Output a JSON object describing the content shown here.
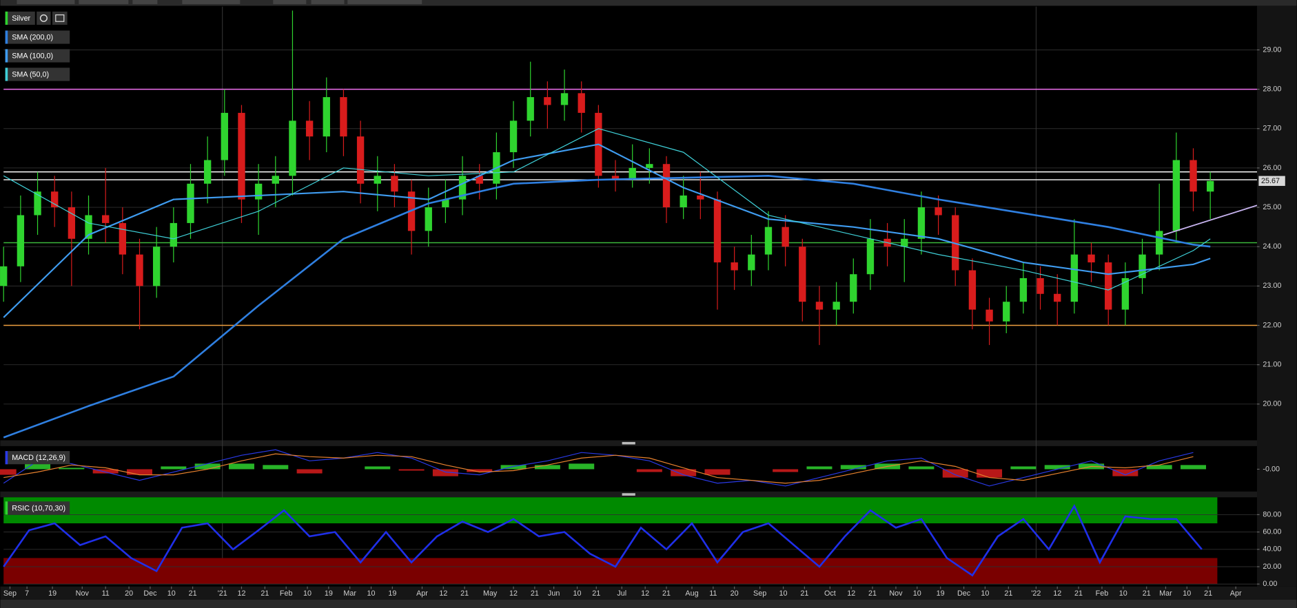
{
  "chart_data": [
    {
      "type": "candlestick",
      "title": "Silver",
      "x": [
        0,
        8,
        16,
        24,
        32,
        40,
        48,
        56,
        64,
        72,
        80,
        88,
        96,
        104,
        112,
        120,
        128,
        136,
        144,
        152,
        160,
        168,
        176,
        184,
        192,
        200,
        208,
        216,
        224,
        232,
        240,
        248,
        256,
        264,
        272,
        280,
        288,
        296,
        304,
        312,
        320,
        328,
        336,
        344,
        352,
        360,
        368,
        376,
        384,
        392,
        400,
        408,
        416,
        424,
        432,
        440,
        448,
        456,
        464,
        472,
        480,
        488,
        496,
        504,
        512,
        520,
        528,
        536,
        544,
        552,
        560,
        568
      ],
      "open": [
        23.0,
        23.5,
        24.8,
        25.4,
        25.0,
        24.2,
        24.8,
        24.6,
        23.8,
        23.0,
        24.0,
        24.6,
        25.6,
        26.2,
        27.4,
        25.2,
        25.6,
        25.8,
        27.2,
        26.8,
        27.8,
        26.8,
        25.6,
        25.8,
        25.4,
        24.4,
        25.0,
        25.2,
        25.8,
        25.6,
        26.4,
        27.2,
        27.8,
        27.6,
        27.9,
        27.4,
        25.8,
        25.7,
        26.0,
        26.1,
        25.0,
        25.3,
        25.2,
        23.6,
        23.4,
        23.8,
        24.5,
        24.0,
        22.6,
        22.4,
        22.6,
        23.3,
        24.2,
        24.0,
        24.2,
        25.0,
        24.8,
        23.4,
        22.4,
        22.1,
        22.6,
        23.2,
        22.8,
        22.6,
        23.8,
        23.6,
        22.4,
        23.2,
        23.8,
        24.4,
        26.2,
        25.4
      ],
      "high": [
        24.0,
        25.3,
        25.9,
        25.8,
        25.4,
        25.3,
        26.0,
        25.0,
        24.2,
        24.5,
        25.0,
        26.1,
        26.8,
        28.0,
        27.6,
        26.1,
        26.3,
        30.0,
        27.7,
        28.3,
        28.0,
        27.2,
        26.3,
        26.1,
        25.7,
        25.5,
        25.7,
        26.3,
        26.1,
        26.9,
        27.7,
        28.7,
        28.2,
        28.5,
        28.2,
        27.6,
        26.2,
        26.6,
        26.5,
        26.3,
        25.8,
        25.9,
        25.4,
        24.0,
        24.3,
        24.9,
        24.8,
        24.2,
        23.0,
        23.1,
        23.7,
        24.7,
        24.6,
        24.7,
        25.4,
        25.3,
        25.0,
        23.7,
        22.7,
        23.0,
        23.6,
        23.5,
        23.3,
        24.7,
        24.1,
        23.8,
        23.6,
        24.2,
        25.6,
        26.9,
        26.5,
        25.9
      ],
      "low": [
        22.6,
        23.1,
        24.3,
        24.5,
        23.0,
        23.8,
        24.1,
        23.3,
        21.9,
        22.7,
        23.6,
        24.2,
        25.1,
        25.8,
        24.6,
        24.3,
        25.0,
        25.3,
        26.2,
        26.4,
        26.3,
        25.1,
        24.9,
        25.0,
        23.8,
        24.0,
        24.6,
        24.8,
        25.2,
        25.2,
        26.0,
        26.8,
        27.0,
        27.2,
        26.9,
        25.5,
        25.4,
        25.5,
        25.6,
        24.6,
        24.7,
        24.7,
        22.4,
        22.9,
        23.0,
        23.4,
        23.5,
        22.1,
        21.5,
        22.0,
        22.3,
        22.9,
        23.5,
        23.1,
        23.8,
        24.3,
        23.0,
        21.9,
        21.5,
        21.8,
        22.3,
        22.4,
        22.0,
        22.3,
        23.1,
        22.0,
        22.0,
        22.8,
        23.4,
        24.1,
        24.9,
        24.7
      ],
      "close": [
        23.5,
        24.8,
        25.4,
        25.0,
        24.2,
        24.8,
        24.6,
        23.8,
        23.0,
        24.0,
        24.6,
        25.6,
        26.2,
        27.4,
        25.2,
        25.6,
        25.8,
        27.2,
        26.8,
        27.8,
        26.8,
        25.6,
        25.8,
        25.4,
        24.4,
        25.0,
        25.2,
        25.8,
        25.6,
        26.4,
        27.2,
        27.8,
        27.6,
        27.9,
        27.4,
        25.8,
        25.7,
        26.0,
        26.1,
        25.0,
        25.3,
        25.2,
        23.6,
        23.4,
        23.8,
        24.5,
        24.0,
        22.6,
        22.4,
        22.6,
        23.3,
        24.2,
        24.0,
        24.2,
        25.0,
        24.8,
        23.4,
        22.4,
        22.1,
        22.6,
        23.2,
        22.8,
        22.6,
        23.8,
        23.6,
        22.4,
        23.2,
        23.8,
        24.4,
        26.2,
        25.4,
        25.67
      ],
      "up_color": "#2fd42f",
      "down_color": "#d81c1c",
      "series": [
        {
          "name": "SMA (200,0)",
          "color": "#2f7fe0",
          "x": [
            0,
            40,
            80,
            120,
            160,
            200,
            240,
            280,
            320,
            360,
            400,
            440,
            480,
            520,
            560,
            568
          ],
          "values": [
            19.15,
            19.95,
            20.7,
            22.5,
            24.2,
            25.1,
            25.6,
            25.7,
            25.75,
            25.8,
            25.6,
            25.2,
            24.85,
            24.5,
            24.05,
            24.0
          ]
        },
        {
          "name": "SMA (100,0)",
          "color": "#3f9cf0",
          "x": [
            0,
            40,
            80,
            120,
            160,
            200,
            240,
            280,
            320,
            360,
            400,
            440,
            480,
            520,
            560,
            568
          ],
          "values": [
            22.2,
            24.3,
            25.2,
            25.3,
            25.4,
            25.2,
            26.2,
            26.6,
            25.5,
            24.7,
            24.5,
            24.2,
            23.6,
            23.3,
            23.55,
            23.7
          ]
        },
        {
          "name": "SMA (50,0)",
          "color": "#3fd0d8",
          "x": [
            0,
            40,
            80,
            120,
            160,
            200,
            240,
            280,
            320,
            360,
            400,
            440,
            480,
            520,
            560,
            568
          ],
          "values": [
            25.8,
            24.6,
            24.2,
            24.9,
            26.0,
            25.8,
            25.9,
            27.0,
            26.4,
            24.8,
            24.3,
            23.8,
            23.4,
            22.9,
            23.9,
            24.2
          ]
        }
      ],
      "levels": [
        {
          "value": 28.0,
          "color": "#f070f0"
        },
        {
          "value": 25.9,
          "color": "#ffffff"
        },
        {
          "value": 25.7,
          "color": "#ffffff"
        },
        {
          "value": 24.1,
          "color": "#3cb83c"
        },
        {
          "value": 22.0,
          "color": "#f0a040"
        }
      ],
      "trendline": {
        "color": "#c8b4f0",
        "x": [
          546,
          590
        ],
        "values": [
          24.3,
          25.05
        ]
      },
      "xlim": [
        0,
        590
      ],
      "ylim": [
        19.1,
        30.1
      ],
      "yticks": [
        {
          "value": 20,
          "label": "20.00"
        },
        {
          "value": 21,
          "label": "21.00"
        },
        {
          "value": 22,
          "label": "22.00"
        },
        {
          "value": 23,
          "label": "23.00"
        },
        {
          "value": 24,
          "label": "24.00"
        },
        {
          "value": 25,
          "label": "25.00"
        },
        {
          "value": 26,
          "label": "26.00"
        },
        {
          "value": 27,
          "label": "27.00"
        },
        {
          "value": 28,
          "label": "28.00"
        },
        {
          "value": 29,
          "label": "29.00"
        }
      ],
      "xticks": [
        {
          "value": 3,
          "label": "Sep"
        },
        {
          "value": 11,
          "label": "7"
        },
        {
          "value": 23,
          "label": "19"
        },
        {
          "value": 37,
          "label": "Nov"
        },
        {
          "value": 48,
          "label": "11"
        },
        {
          "value": 59,
          "label": "20"
        },
        {
          "value": 69,
          "label": "Dec"
        },
        {
          "value": 79,
          "label": "10"
        },
        {
          "value": 89,
          "label": "21"
        },
        {
          "value": 103,
          "label": "'21"
        },
        {
          "value": 112,
          "label": "12"
        },
        {
          "value": 123,
          "label": "21"
        },
        {
          "value": 133,
          "label": "Feb"
        },
        {
          "value": 143,
          "label": "10"
        },
        {
          "value": 153,
          "label": "19"
        },
        {
          "value": 163,
          "label": "Mar"
        },
        {
          "value": 173,
          "label": "10"
        },
        {
          "value": 183,
          "label": "19"
        },
        {
          "value": 197,
          "label": "Apr"
        },
        {
          "value": 207,
          "label": "12"
        },
        {
          "value": 217,
          "label": "21"
        },
        {
          "value": 229,
          "label": "May"
        },
        {
          "value": 240,
          "label": "12"
        },
        {
          "value": 250,
          "label": "21"
        },
        {
          "value": 259,
          "label": "Jun"
        },
        {
          "value": 270,
          "label": "10"
        },
        {
          "value": 279,
          "label": "21"
        },
        {
          "value": 291,
          "label": "Jul"
        },
        {
          "value": 302,
          "label": "12"
        },
        {
          "value": 312,
          "label": "21"
        },
        {
          "value": 324,
          "label": "Aug"
        },
        {
          "value": 334,
          "label": "11"
        },
        {
          "value": 344,
          "label": "20"
        },
        {
          "value": 356,
          "label": "Sep"
        },
        {
          "value": 367,
          "label": "10"
        },
        {
          "value": 377,
          "label": "21"
        },
        {
          "value": 389,
          "label": "Oct"
        },
        {
          "value": 399,
          "label": "12"
        },
        {
          "value": 409,
          "label": "21"
        },
        {
          "value": 420,
          "label": "Nov"
        },
        {
          "value": 430,
          "label": "10"
        },
        {
          "value": 441,
          "label": "19"
        },
        {
          "value": 452,
          "label": "Dec"
        },
        {
          "value": 462,
          "label": "10"
        },
        {
          "value": 473,
          "label": "21"
        },
        {
          "value": 486,
          "label": "'22"
        },
        {
          "value": 496,
          "label": "12"
        },
        {
          "value": 506,
          "label": "21"
        },
        {
          "value": 517,
          "label": "Feb"
        },
        {
          "value": 527,
          "label": "10"
        },
        {
          "value": 538,
          "label": "21"
        },
        {
          "value": 547,
          "label": "Mar"
        },
        {
          "value": 557,
          "label": "10"
        },
        {
          "value": 567,
          "label": "21"
        },
        {
          "value": 580,
          "label": "Apr"
        }
      ],
      "grid": true
    },
    {
      "type": "macd",
      "title": "MACD (12,26,9)",
      "x": [
        0,
        16,
        32,
        48,
        64,
        80,
        96,
        112,
        128,
        144,
        160,
        176,
        192,
        208,
        224,
        240,
        256,
        272,
        288,
        304,
        320,
        336,
        352,
        368,
        384,
        400,
        416,
        432,
        448,
        464,
        480,
        496,
        512,
        528,
        544,
        560
      ],
      "series": [
        {
          "color": "#2a3ae8",
          "values": [
            -0.5,
            0.3,
            0.2,
            -0.1,
            -0.4,
            -0.1,
            0.2,
            0.5,
            0.7,
            0.3,
            0.4,
            0.6,
            0.4,
            -0.1,
            -0.2,
            0.1,
            0.3,
            0.6,
            0.5,
            0.3,
            -0.2,
            -0.5,
            -0.4,
            -0.6,
            -0.3,
            0.0,
            0.3,
            0.4,
            -0.2,
            -0.6,
            -0.3,
            0.0,
            0.3,
            -0.2,
            0.3,
            0.6
          ]
        },
        {
          "color": "#e8822e",
          "values": [
            -0.3,
            -0.1,
            0.15,
            0.05,
            -0.2,
            -0.2,
            0.0,
            0.3,
            0.55,
            0.45,
            0.4,
            0.5,
            0.45,
            0.15,
            -0.1,
            -0.05,
            0.15,
            0.4,
            0.5,
            0.4,
            0.05,
            -0.3,
            -0.4,
            -0.5,
            -0.4,
            -0.15,
            0.1,
            0.3,
            0.1,
            -0.3,
            -0.4,
            -0.15,
            0.1,
            0.05,
            0.15,
            0.45
          ]
        }
      ],
      "histogram": [
        -0.2,
        0.4,
        0.05,
        -0.15,
        -0.2,
        0.1,
        0.2,
        0.2,
        0.15,
        -0.15,
        0,
        0.1,
        -0.05,
        -0.25,
        -0.1,
        0.15,
        0.15,
        0.2,
        0,
        -0.1,
        -0.25,
        -0.2,
        0,
        -0.1,
        0.1,
        0.15,
        0.2,
        0.1,
        -0.3,
        -0.3,
        0.1,
        0.15,
        0.2,
        -0.25,
        0.15,
        0.15
      ],
      "up_color": "#2fd42f",
      "down_color": "#d81c1c",
      "xlim": [
        0,
        590
      ],
      "ylim": [
        -0.8,
        0.8
      ],
      "yticks": [
        {
          "value": 0,
          "label": "-0.00"
        }
      ]
    },
    {
      "type": "line",
      "title": "RSIC (10,70,30)",
      "x": [
        0,
        12,
        24,
        36,
        48,
        60,
        72,
        84,
        96,
        108,
        120,
        132,
        144,
        156,
        168,
        180,
        192,
        204,
        216,
        228,
        240,
        252,
        264,
        276,
        288,
        300,
        312,
        324,
        336,
        348,
        360,
        372,
        384,
        396,
        408,
        420,
        432,
        444,
        456,
        468,
        480,
        492,
        504,
        516,
        528,
        540,
        552,
        564
      ],
      "values": [
        20,
        62,
        70,
        45,
        55,
        30,
        15,
        65,
        70,
        40,
        62,
        85,
        55,
        60,
        25,
        60,
        25,
        55,
        72,
        60,
        75,
        55,
        60,
        35,
        20,
        65,
        40,
        70,
        25,
        60,
        70,
        45,
        20,
        55,
        85,
        65,
        75,
        30,
        10,
        55,
        75,
        40,
        90,
        25,
        78,
        75,
        75,
        40
      ],
      "color": "#1f2fe8",
      "bands": [
        {
          "from": 70,
          "to": 100,
          "color": "#008a00"
        },
        {
          "from": 0,
          "to": 30,
          "color": "#7a0000"
        }
      ],
      "xlim": [
        0,
        590
      ],
      "ylim": [
        0,
        100
      ],
      "yticks": [
        {
          "value": 0,
          "label": "0.00"
        },
        {
          "value": 20,
          "label": "20.00"
        },
        {
          "value": 40,
          "label": "40.00"
        },
        {
          "value": 60,
          "label": "60.00"
        },
        {
          "value": 80,
          "label": "80.00"
        }
      ]
    }
  ]
}
